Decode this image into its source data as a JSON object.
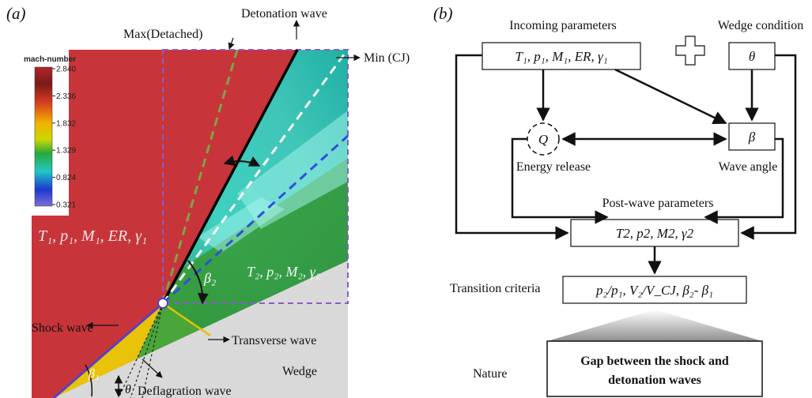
{
  "panel_a": {
    "tag": "(a)",
    "colorbar": {
      "title": "mach-number",
      "ticks": [
        "2.840",
        "2.336",
        "1.832",
        "1.329",
        "0.824",
        "0.321"
      ]
    },
    "labels": {
      "max_detached": "Max(Detached)",
      "detonation_wave": "Detonation wave",
      "min_cj": "Min (CJ)",
      "incoming_state": "T₁, p₁, M₁, ER, γ₁",
      "post_state": "T₂, p₂, M₂, γ₂",
      "beta2": "β₂",
      "beta1": "β₁",
      "theta": "θ",
      "shock_wave": "Shock wave",
      "transverse_wave": "Transverse wave",
      "wedge": "Wedge",
      "deflagration_wave": "Deflagration wave"
    },
    "colors": {
      "incoming_region": "#c7353a",
      "wedge_region": "#d9d9d9",
      "detonation_line": "#000000",
      "max_detached_line": "#7fa34a",
      "min_cj_line": "#ffffff",
      "blue_dashed_line": "#2f4fd8",
      "domain_box": "#8a5cc8",
      "shock_line": "#5a3fc7",
      "transverse_line": "#e8c100"
    }
  },
  "panel_b": {
    "tag": "(b)",
    "incoming_title": "Incoming parameters",
    "incoming_box": "T₁, p₁, M₁, ER, γ₁",
    "plus_symbol": "plus-icon",
    "wedge_title": "Wedge condition",
    "wedge_box": "θ",
    "q_node": "Q",
    "energy_label": "Energy release",
    "beta_box": "β",
    "wave_angle_label": "Wave angle",
    "post_title": "Post-wave parameters",
    "post_box": "T2, p2, M2, γ2",
    "criteria_label": "Transition criteria",
    "criteria_box": "p₂/p₁, V₂/V_CJ, β₂- β₁",
    "nature_label": "Nature",
    "nature_line1": "Gap between the shock and",
    "nature_line2": "detonation waves"
  }
}
